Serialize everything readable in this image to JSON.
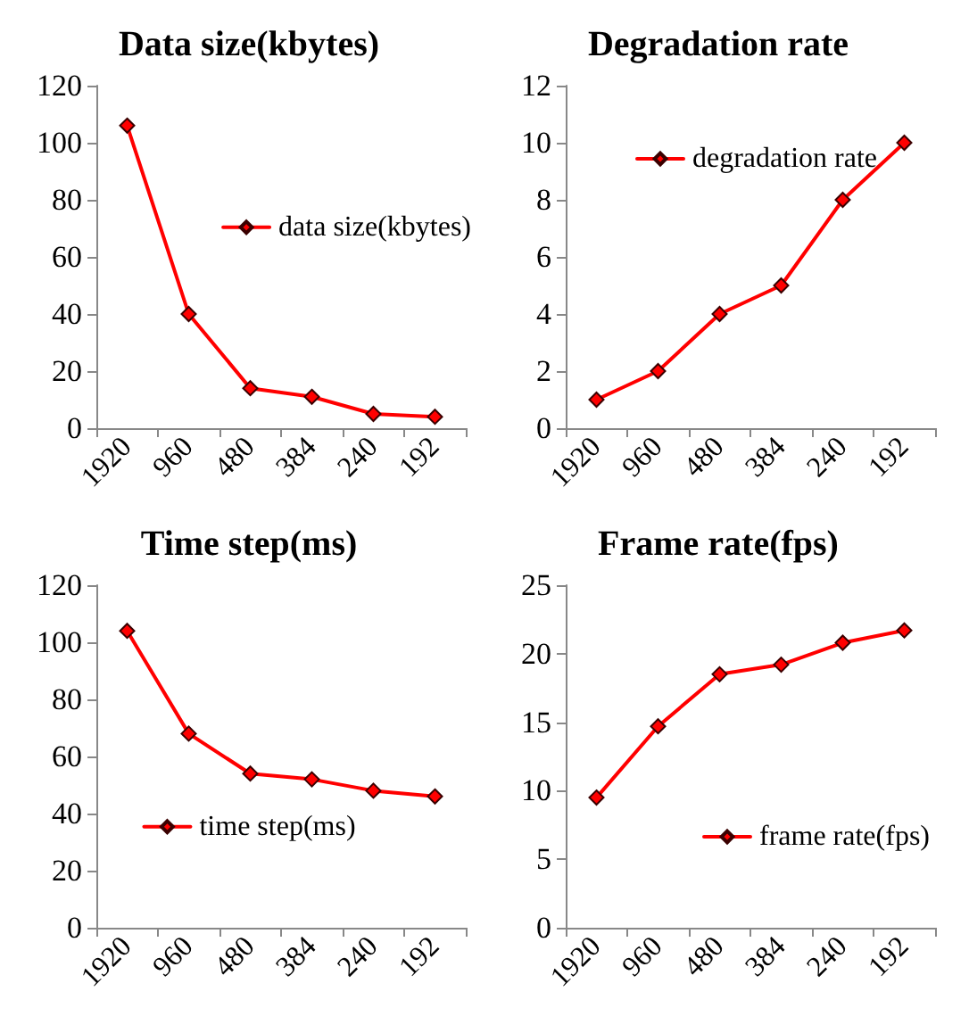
{
  "chart_data": [
    {
      "type": "line",
      "title": "Data size(kbytes)",
      "categories": [
        "1920",
        "960",
        "480",
        "384",
        "240",
        "192"
      ],
      "series": [
        {
          "name": "data size(kbytes)",
          "color": "#ff0000",
          "values": [
            106,
            40,
            14,
            11,
            5,
            4
          ]
        }
      ],
      "ylim": [
        0,
        120
      ],
      "yticks": [
        0,
        20,
        40,
        60,
        80,
        100,
        120
      ],
      "marker": "diamond",
      "legend": "right",
      "grid": false
    },
    {
      "type": "line",
      "title": "Degradation rate",
      "categories": [
        "1920",
        "960",
        "480",
        "384",
        "240",
        "192"
      ],
      "series": [
        {
          "name": "degradation rate",
          "color": "#ff0000",
          "values": [
            1,
            2,
            4,
            5,
            8,
            10
          ]
        }
      ],
      "ylim": [
        0,
        12
      ],
      "yticks": [
        0,
        2,
        4,
        6,
        8,
        10,
        12
      ],
      "marker": "diamond",
      "legend": "top right",
      "grid": false
    },
    {
      "type": "line",
      "title": "Time step(ms)",
      "categories": [
        "1920",
        "960",
        "480",
        "384",
        "240",
        "192"
      ],
      "series": [
        {
          "name": "time step(ms)",
          "color": "#ff0000",
          "values": [
            104,
            68,
            54,
            52,
            48,
            46
          ]
        }
      ],
      "ylim": [
        0,
        120
      ],
      "yticks": [
        0,
        20,
        40,
        60,
        80,
        100,
        120
      ],
      "marker": "diamond",
      "legend": "center",
      "grid": false
    },
    {
      "type": "line",
      "title": "Frame rate(fps)",
      "categories": [
        "1920",
        "960",
        "480",
        "384",
        "240",
        "192"
      ],
      "series": [
        {
          "name": "frame rate(fps)",
          "color": "#ff0000",
          "values": [
            9.5,
            14.7,
            18.5,
            19.2,
            20.8,
            21.7
          ]
        }
      ],
      "ylim": [
        0,
        25
      ],
      "yticks": [
        0,
        5,
        10,
        15,
        20,
        25
      ],
      "marker": "diamond",
      "legend": "bottom right",
      "grid": false
    }
  ]
}
